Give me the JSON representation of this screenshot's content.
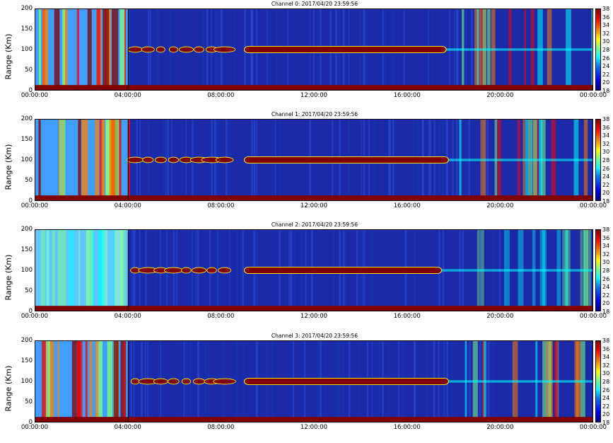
{
  "chart_data": [
    {
      "type": "heatmap",
      "title": "Channel 0: 2017/04/20 23:59:56",
      "ylabel": "Range (Km)",
      "ylim": [
        0,
        200
      ],
      "yticks": [
        "0",
        "50",
        "100",
        "150",
        "200"
      ],
      "xticks": [
        "00:00:00",
        "04:00:00",
        "08:00:00",
        "12:00:00",
        "16:00:00",
        "20:00:00",
        "00:00:00"
      ],
      "xlim_hours": [
        0,
        24
      ],
      "colorbar": {
        "min": 18,
        "max": 38,
        "ticks": [
          "18",
          "20",
          "22",
          "24",
          "26",
          "28",
          "30",
          "32",
          "34",
          "36",
          "38"
        ],
        "colormap": "jet"
      },
      "features": {
        "band_center_km": 100,
        "band_strong_from_h": 9,
        "band_strong_to_h": 17.7,
        "left_block_end_h": 4,
        "left_block_intensity": "high",
        "right_block_start_h": 18,
        "right_block_intensity": "high"
      }
    },
    {
      "type": "heatmap",
      "title": "Channel 1: 2017/04/20 23:59:56",
      "ylabel": "Range (Km)",
      "ylim": [
        0,
        200
      ],
      "yticks": [
        "0",
        "50",
        "100",
        "150",
        "200"
      ],
      "xticks": [
        "00:00:00",
        "04:00:00",
        "08:00:00",
        "12:00:00",
        "16:00:00",
        "20:00:00",
        "00:00:00"
      ],
      "xlim_hours": [
        0,
        24
      ],
      "colorbar": {
        "min": 18,
        "max": 38,
        "ticks": [
          "18",
          "20",
          "22",
          "24",
          "26",
          "28",
          "30",
          "32",
          "34",
          "36",
          "38"
        ],
        "colormap": "jet"
      },
      "features": {
        "band_center_km": 100,
        "band_strong_from_h": 9,
        "band_strong_to_h": 17.8,
        "left_block_end_h": 4,
        "left_block_intensity": "high",
        "right_block_start_h": 18,
        "right_block_intensity": "high"
      }
    },
    {
      "type": "heatmap",
      "title": "Channel 2: 2017/04/20 23:59:56",
      "ylabel": "Range (Km)",
      "ylim": [
        0,
        200
      ],
      "yticks": [
        "0",
        "50",
        "100",
        "150",
        "200"
      ],
      "xticks": [
        "00:00:00",
        "04:00:00",
        "08:00:00",
        "12:00:00",
        "16:00:00",
        "20:00:00",
        "00:00:00"
      ],
      "xlim_hours": [
        0,
        24
      ],
      "colorbar": {
        "min": 18,
        "max": 38,
        "ticks": [
          "18",
          "20",
          "22",
          "24",
          "26",
          "28",
          "30",
          "32",
          "34",
          "36",
          "38"
        ],
        "colormap": "jet"
      },
      "features": {
        "band_center_km": 100,
        "band_strong_from_h": 9,
        "band_strong_to_h": 17.5,
        "left_block_end_h": 4,
        "left_block_intensity": "medium",
        "right_block_start_h": 19,
        "right_block_intensity": "medium"
      }
    },
    {
      "type": "heatmap",
      "title": "Channel 3: 2017/04/20 23:59:56",
      "ylabel": "Range (Km)",
      "ylim": [
        0,
        200
      ],
      "yticks": [
        "0",
        "50",
        "100",
        "150",
        "200"
      ],
      "xticks": [
        "00:00:00",
        "04:00:00",
        "08:00:00",
        "12:00:00",
        "16:00:00",
        "20:00:00",
        "00:00:00"
      ],
      "xlim_hours": [
        0,
        24
      ],
      "colorbar": {
        "min": 18,
        "max": 38,
        "ticks": [
          "18",
          "20",
          "22",
          "24",
          "26",
          "28",
          "30",
          "32",
          "34",
          "36",
          "38"
        ],
        "colormap": "jet"
      },
      "features": {
        "band_center_km": 100,
        "band_strong_from_h": 9,
        "band_strong_to_h": 17.8,
        "left_block_end_h": 4,
        "left_block_intensity": "high",
        "right_block_start_h": 18,
        "right_block_intensity": "high"
      }
    }
  ],
  "colors": {
    "background_deep": "#1b2aa8",
    "band": "#800000",
    "band_edge": "#ffff00",
    "cyan": "#00ffff",
    "red": "#ff0000",
    "orange": "#ff8000",
    "green": "#7fff7f"
  }
}
